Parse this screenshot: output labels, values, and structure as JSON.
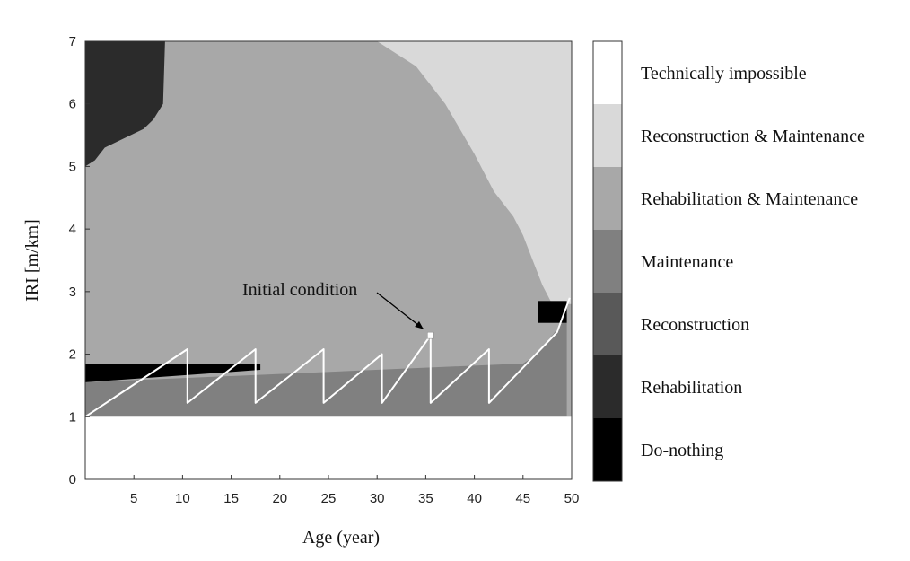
{
  "chart_data": {
    "type": "heatmap",
    "title": "",
    "xlabel": "Age (year)",
    "ylabel": "IRI [m/km]",
    "xlim": [
      0,
      50
    ],
    "ylim": [
      0,
      7
    ],
    "xticks": [
      5,
      10,
      15,
      20,
      25,
      30,
      35,
      40,
      45,
      50
    ],
    "yticks": [
      0,
      1,
      2,
      3,
      4,
      5,
      6,
      7
    ],
    "grid": false,
    "legend_position": "right",
    "legend": [
      {
        "label": "Technically  impossible",
        "color": "#ffffff"
      },
      {
        "label": "Reconstruction & Maintenance",
        "color": "#d9d9d9"
      },
      {
        "label": "Rehabilitation  & Maintenance",
        "color": "#a8a8a8"
      },
      {
        "label": "Maintenance",
        "color": "#808080"
      },
      {
        "label": "Reconstruction",
        "color": "#595959"
      },
      {
        "label": "Rehabilitation",
        "color": "#2b2b2b"
      },
      {
        "label": "Do-nothing",
        "color": "#000000"
      }
    ],
    "regions": {
      "technically_impossible": {
        "x": [
          0,
          50
        ],
        "y": [
          0,
          1
        ]
      },
      "maintenance_band": {
        "x": [
          0,
          45,
          46,
          47,
          48,
          49,
          49.5
        ],
        "y": [
          1.55,
          1.85,
          1.95,
          2.1,
          2.3,
          2.5,
          2.8
        ]
      },
      "do_nothing_band": {
        "x": [
          0,
          18
        ],
        "y_lower": [
          1.55,
          1.75
        ],
        "y_upper": [
          1.85,
          1.85
        ]
      },
      "rehabilitation_corner": {
        "x": [
          0,
          1,
          2,
          6,
          7,
          8,
          8.2
        ],
        "y": [
          5.0,
          5.1,
          5.3,
          5.6,
          5.75,
          6.0,
          7.0
        ]
      },
      "reconstruction_maintenance_boundary": {
        "x": [
          30,
          34,
          37,
          40,
          42,
          44,
          45,
          46,
          47,
          48
        ],
        "y": [
          7.0,
          6.6,
          6.0,
          5.2,
          4.6,
          4.2,
          3.9,
          3.5,
          3.1,
          2.8
        ]
      },
      "do_nothing_right": {
        "x": [
          46.5,
          49.5
        ],
        "y": [
          2.5,
          2.85
        ]
      }
    },
    "series": [
      {
        "type": "line",
        "color": "#ffffff",
        "x": [
          0,
          10.5,
          10.5,
          17.5,
          17.5,
          24.5,
          24.5,
          30.5,
          30.5,
          35.5,
          35.5,
          41.5,
          41.5,
          48.5,
          49.8
        ],
        "y": [
          1.0,
          2.08,
          1.22,
          2.08,
          1.22,
          2.08,
          1.22,
          2.0,
          1.22,
          2.3,
          1.22,
          2.08,
          1.22,
          2.35,
          2.9
        ]
      }
    ],
    "annotations": [
      {
        "text": "Initial condition",
        "point": [
          35.5,
          2.3
        ]
      }
    ]
  }
}
